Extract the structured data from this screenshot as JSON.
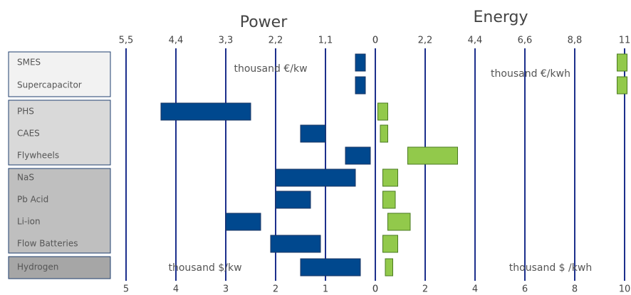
{
  "chart_data": {
    "type": "range-bar",
    "categories": [
      "SMES",
      "Supercapacitor",
      "PHS",
      "CAES",
      "Flywheels",
      "NaS",
      "Pb Acid",
      "Li-ion",
      "Flow Batteries",
      "Hydrogen"
    ],
    "panels": [
      {
        "title": "Power",
        "unit_top": "thousand €/kw",
        "unit_bottom": "thousand $/kw",
        "color": "#00488e",
        "reversed": true,
        "xlim": [
          0,
          5
        ],
        "xticks": [
          5,
          4,
          3,
          2,
          1,
          0
        ],
        "xticks_top": [
          {
            "value": 5,
            "label": "5,5"
          },
          {
            "value": 4,
            "label": "4,4"
          },
          {
            "value": 3,
            "label": "3,3"
          },
          {
            "value": 2,
            "label": "2,2"
          },
          {
            "value": 1,
            "label": "1,1"
          },
          0
        ],
        "values": [
          [
            0.2,
            0.4
          ],
          [
            0.2,
            0.4
          ],
          [
            2.5,
            4.3
          ],
          [
            1,
            1.5
          ],
          [
            0.1,
            0.6
          ],
          [
            0.4,
            2
          ],
          [
            1.3,
            2
          ],
          [
            2.3,
            3
          ],
          [
            1.1,
            2.1
          ],
          [
            0.3,
            1.5
          ]
        ]
      },
      {
        "title": "Energy",
        "unit_top": "thousand €/kwh",
        "unit_bottom": "thousand $ /kwh",
        "color": "#92c94b",
        "reversed": false,
        "xlim": [
          0,
          10
        ],
        "xticks": [
          0,
          2,
          4,
          6,
          8,
          10
        ],
        "xticks_top": [
          0,
          {
            "value": 2,
            "label": "2,2"
          },
          {
            "value": 4,
            "label": "4,4"
          },
          {
            "value": 6,
            "label": "6,6"
          },
          {
            "value": 8,
            "label": "8,8"
          },
          {
            "value": 10,
            "label": "11"
          }
        ],
        "values": [
          [
            9.7,
            10.1
          ],
          [
            9.7,
            10.1
          ],
          [
            0.1,
            0.5
          ],
          [
            0.2,
            0.5
          ],
          [
            1.3,
            3.3
          ],
          [
            0.3,
            0.9
          ],
          [
            0.3,
            0.8
          ],
          [
            0.5,
            1.4
          ],
          [
            0.3,
            0.9
          ],
          [
            0.4,
            0.7
          ]
        ]
      }
    ]
  }
}
